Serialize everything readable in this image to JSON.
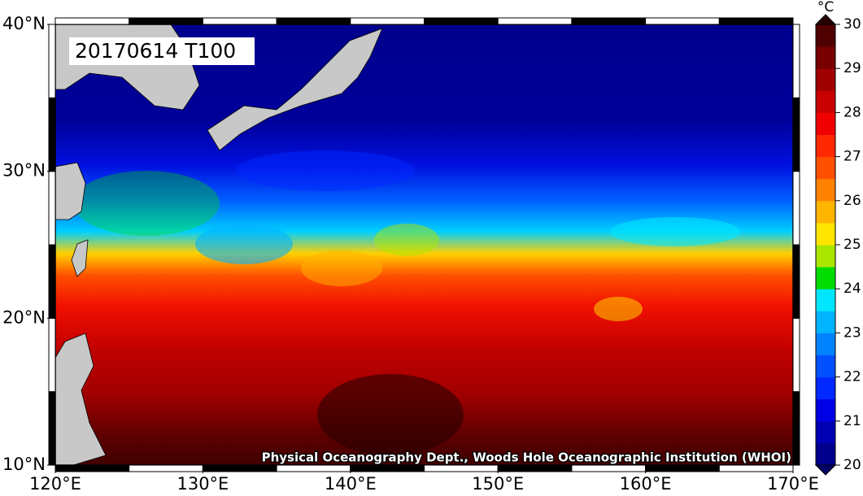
{
  "map": {
    "label": "20170614 T100",
    "credit": "Physical Oceanography Dept., Woods Hole Oceanographic Institution (WHOI)",
    "lonlim": [
      120,
      170
    ],
    "latlim": [
      10,
      40
    ],
    "lon_ticks": [
      {
        "value": 120,
        "label": "120°E"
      },
      {
        "value": 130,
        "label": "130°E"
      },
      {
        "value": 140,
        "label": "140°E"
      },
      {
        "value": 150,
        "label": "150°E"
      },
      {
        "value": 160,
        "label": "160°E"
      },
      {
        "value": 170,
        "label": "170°E"
      }
    ],
    "lat_ticks": [
      {
        "value": 10,
        "label": "10°N"
      },
      {
        "value": 20,
        "label": "20°N"
      },
      {
        "value": 30,
        "label": "30°N"
      },
      {
        "value": 40,
        "label": "40°N"
      }
    ],
    "colorbar": {
      "unit": "°C",
      "lim": [
        20,
        30
      ],
      "ticks": [
        20,
        21,
        22,
        23,
        24,
        25,
        26,
        27,
        28,
        29,
        30
      ],
      "colors": [
        "#00008c",
        "#0000b4",
        "#0000e6",
        "#0028ff",
        "#0050ff",
        "#0082ff",
        "#00b4ff",
        "#00e6ff",
        "#00dc00",
        "#aae600",
        "#ffe600",
        "#ffb400",
        "#ff8200",
        "#ff5000",
        "#ff2800",
        "#f00000",
        "#c80000",
        "#a00000",
        "#780000",
        "#500000"
      ],
      "under_color": "#000064",
      "over_color": "#280000"
    }
  }
}
